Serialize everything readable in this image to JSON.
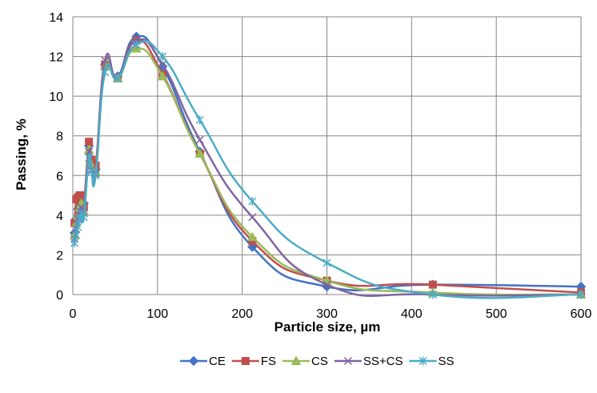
{
  "chart_data": {
    "type": "line",
    "title": "",
    "xlabel": "Particle size, µm",
    "ylabel": "Passing,  %",
    "xlim": [
      0,
      600
    ],
    "ylim": [
      0,
      14
    ],
    "xticks": [
      0,
      100,
      200,
      300,
      400,
      500,
      600
    ],
    "yticks": [
      0,
      2,
      4,
      6,
      8,
      10,
      12,
      14
    ],
    "grid": true,
    "legend_position": "bottom",
    "series": [
      {
        "name": "CE",
        "color": "#4472C4",
        "marker": "diamond",
        "x": [
          2,
          4,
          6,
          8,
          10,
          13,
          19,
          22,
          27,
          38,
          53,
          75,
          106,
          150,
          212,
          300,
          425,
          600
        ],
        "y": [
          3.1,
          3.8,
          4.3,
          4.6,
          4.8,
          4.6,
          7.5,
          6.6,
          6.3,
          11.6,
          11.0,
          13.0,
          11.5,
          7.2,
          2.4,
          0.4,
          0.5,
          0.4
        ]
      },
      {
        "name": "FS",
        "color": "#C0504D",
        "marker": "square",
        "x": [
          2,
          4,
          6,
          8,
          10,
          13,
          19,
          22,
          27,
          38,
          53,
          75,
          106,
          150,
          212,
          300,
          425,
          600
        ],
        "y": [
          3.6,
          4.8,
          4.9,
          5.0,
          5.0,
          4.4,
          7.7,
          6.8,
          6.5,
          11.6,
          10.9,
          12.8,
          11.1,
          7.1,
          2.7,
          0.7,
          0.5,
          0.1
        ]
      },
      {
        "name": "CS",
        "color": "#9BBB59",
        "marker": "triangle",
        "x": [
          2,
          4,
          6,
          8,
          10,
          13,
          19,
          22,
          27,
          38,
          53,
          75,
          106,
          150,
          212,
          300,
          425,
          600
        ],
        "y": [
          3.0,
          3.6,
          4.0,
          4.4,
          4.6,
          4.2,
          7.3,
          6.5,
          6.2,
          11.5,
          10.9,
          12.4,
          11.0,
          7.1,
          2.9,
          0.7,
          0.1,
          0.0
        ]
      },
      {
        "name": "SS+CS",
        "color": "#8064A2",
        "marker": "x",
        "x": [
          2,
          4,
          6,
          8,
          10,
          13,
          19,
          22,
          27,
          38,
          53,
          75,
          106,
          150,
          212,
          300,
          425,
          600
        ],
        "y": [
          2.8,
          3.3,
          3.8,
          4.2,
          4.4,
          4.1,
          7.2,
          6.3,
          6.1,
          11.8,
          10.9,
          12.8,
          11.6,
          7.8,
          3.9,
          0.5,
          0.0,
          0.0
        ]
      },
      {
        "name": "SS",
        "color": "#4BACC6",
        "marker": "asterisk",
        "x": [
          2,
          4,
          6,
          8,
          10,
          13,
          19,
          22,
          27,
          38,
          53,
          75,
          106,
          150,
          212,
          300,
          425,
          600
        ],
        "y": [
          2.6,
          3.0,
          3.4,
          3.8,
          4.1,
          3.9,
          6.9,
          6.2,
          6.0,
          11.2,
          10.9,
          12.6,
          12.0,
          8.8,
          4.7,
          1.6,
          0.0,
          0.0
        ]
      }
    ]
  }
}
